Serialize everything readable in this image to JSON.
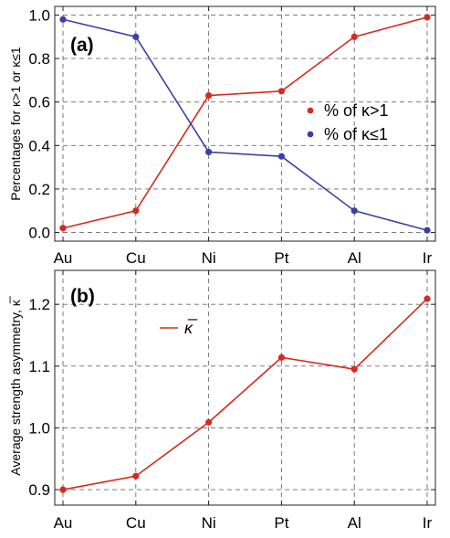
{
  "chart_data": [
    {
      "type": "line",
      "panel_label": "(a)",
      "categories": [
        "Au",
        "Cu",
        "Ni",
        "Pt",
        "Al",
        "Ir"
      ],
      "ylabel": "Percentages for κ>1 or κ≤1",
      "ylim": [
        -0.04,
        1.04
      ],
      "yticks": [
        0.0,
        0.2,
        0.4,
        0.6,
        0.8,
        1.0
      ],
      "ytick_labels": [
        "0.0",
        "0.2",
        "0.4",
        "0.6",
        "0.8",
        "1.0"
      ],
      "grid": true,
      "legend_position": "right",
      "series": [
        {
          "name": "% of κ>1",
          "color": "#d62a1e",
          "values": [
            0.02,
            0.1,
            0.63,
            0.65,
            0.9,
            0.99
          ]
        },
        {
          "name": "% of κ≤1",
          "color": "#3c3fa8",
          "values": [
            0.98,
            0.9,
            0.37,
            0.35,
            0.1,
            0.01
          ]
        }
      ]
    },
    {
      "type": "line",
      "panel_label": "(b)",
      "categories": [
        "Au",
        "Cu",
        "Ni",
        "Pt",
        "Al",
        "Ir"
      ],
      "ylabel": "Average strength asymmetry, κ̅",
      "ylim": [
        0.875,
        1.255
      ],
      "yticks": [
        0.9,
        1.0,
        1.1,
        1.2
      ],
      "ytick_labels": [
        "0.9",
        "1.0",
        "1.1",
        "1.2"
      ],
      "grid": true,
      "legend_position": "top-left",
      "series": [
        {
          "name": "κ̅",
          "color": "#d62a1e",
          "values": [
            0.9,
            0.922,
            1.009,
            1.114,
            1.095,
            1.209
          ]
        }
      ]
    }
  ]
}
